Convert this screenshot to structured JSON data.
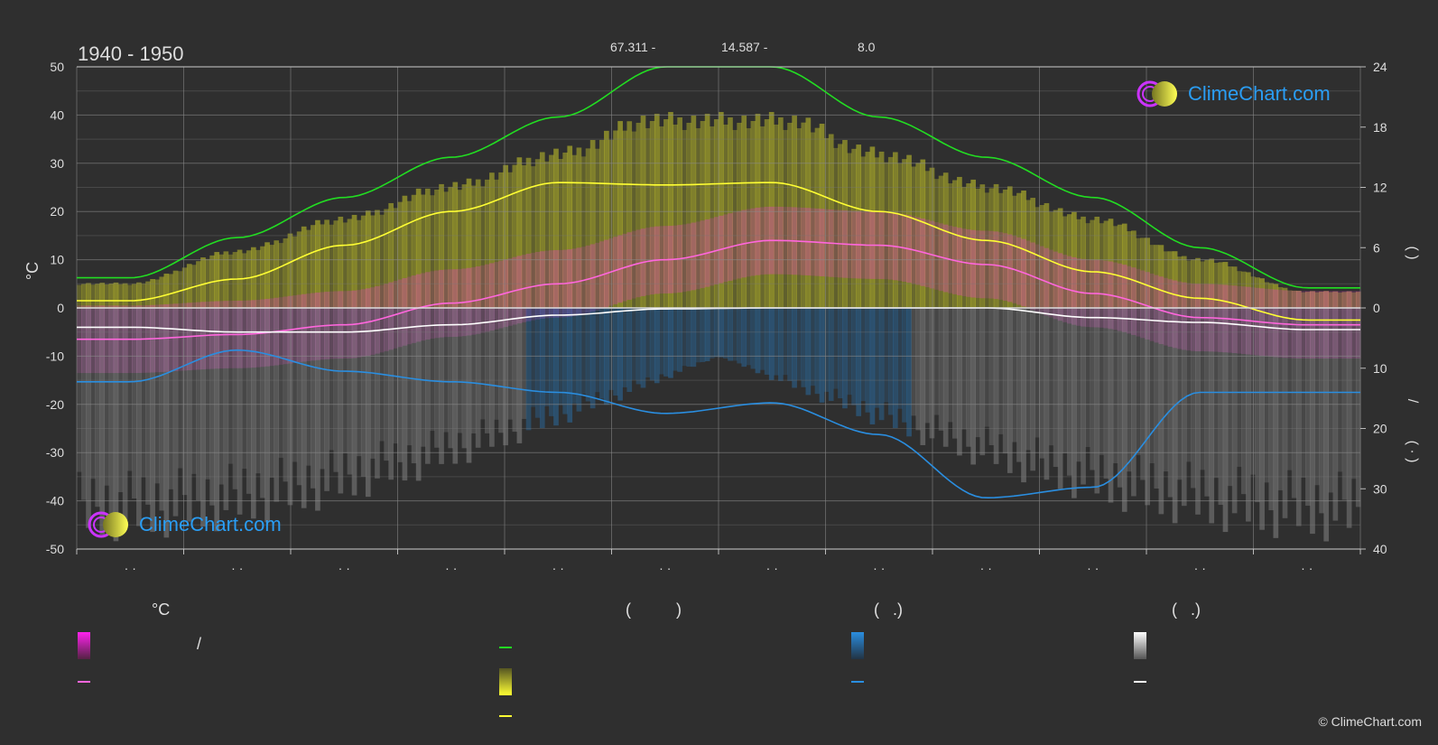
{
  "chart_data": {
    "type": "area",
    "title": "1940 - 1950",
    "ylabel_left": "°C",
    "ylabel_right_top": "(   )",
    "ylabel_right_bottom_a": "/",
    "ylabel_right_bottom_b": "(   ·   )",
    "y_left_range": [
      -50,
      50
    ],
    "y_left_ticks": [
      "50",
      "40",
      "30",
      "20",
      "10",
      "0",
      "-10",
      "-20",
      "-30",
      "-40",
      "-50"
    ],
    "y_right_ticks_top": [
      "24",
      "18",
      "12",
      "6",
      "0"
    ],
    "y_right_ticks_bottom": [
      "10",
      "20",
      "30",
      "40"
    ],
    "x_tick_labels": [
      "· ·",
      "· ·",
      "· ·",
      "· ·",
      "· ·",
      "· ·",
      "· ·",
      "· ·",
      "· ·",
      "· ·",
      "· ·",
      "· ·"
    ],
    "x": [
      0,
      1,
      2,
      3,
      4,
      5,
      6,
      7,
      8,
      9,
      10,
      11
    ],
    "series": [
      {
        "key": "max_temp_mean",
        "color": "#ffff33",
        "values": [
          1.5,
          6,
          13,
          20,
          26,
          25.5,
          26,
          20,
          14,
          7.5,
          2,
          -2.5
        ]
      },
      {
        "key": "mean_temp",
        "color": "#ff66dd",
        "values": [
          -6.5,
          -5.5,
          -3.5,
          1,
          5,
          10,
          14,
          13,
          9,
          3,
          -2,
          -3.5
        ]
      },
      {
        "key": "daylight_hours",
        "color": "#22dd22",
        "values": [
          3,
          7,
          11,
          15,
          19,
          24,
          24,
          19,
          15,
          11,
          6,
          2
        ]
      },
      {
        "key": "precip_mm",
        "color": "#2a8ee0",
        "values": [
          3.5,
          2,
          3,
          3.5,
          4,
          5,
          4.5,
          6,
          9,
          8.5,
          4,
          4
        ]
      },
      {
        "key": "snow_line",
        "color": "#ffffff",
        "values": [
          -4,
          -5,
          -5,
          -3.5,
          -1.5,
          -0.2,
          0,
          0,
          0,
          -2,
          -3,
          -4.5
        ]
      }
    ],
    "annotations": [
      "67.311 -",
      "14.587 -",
      "8.0"
    ],
    "grid": true,
    "legend_placement": "bottom"
  },
  "legend": {
    "col1_header": "°C",
    "col1_item1_sep": "/",
    "col2_header": "(          )",
    "col3_header": "(   .)",
    "col4_header": "(   .)"
  },
  "logo_text": "ClimeChart.com",
  "copyright": "© ClimeChart.com",
  "colors": {
    "background": "#2f2f2f",
    "temp_band": "#ff33cc",
    "sun_band": "#dddd33",
    "rain_band": "#1e7fd8",
    "snow_band": "#999999"
  }
}
